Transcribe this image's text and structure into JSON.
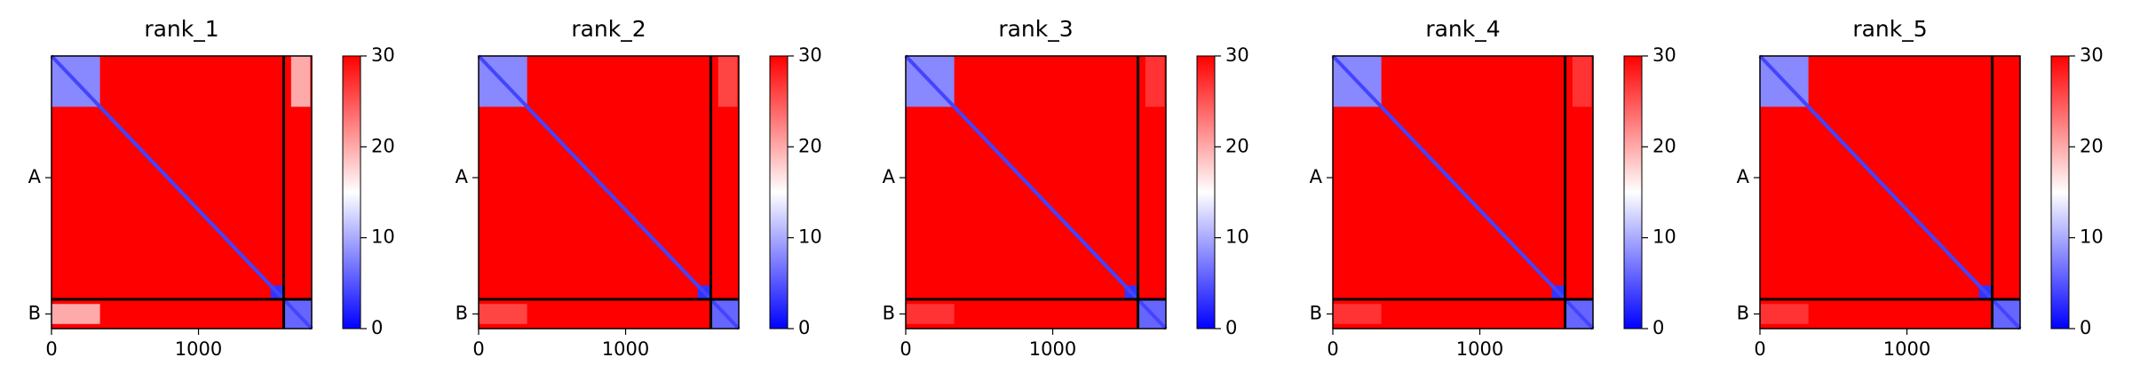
{
  "chart_data": [
    {
      "type": "heatmap",
      "title": "rank_1",
      "xlim": [
        0,
        1770
      ],
      "ylim": [
        0,
        1770
      ],
      "xticks": [
        0,
        1000
      ],
      "yticks": [
        {
          "value": 790,
          "label": "A"
        },
        {
          "value": 1675,
          "label": "B"
        }
      ],
      "clim": [
        0,
        30
      ],
      "cticks": [
        0,
        10,
        20,
        30
      ],
      "background": 30,
      "diagonal": 4,
      "chain_breaks": [
        1580
      ],
      "blocks": [
        {
          "x": [
            0,
            330
          ],
          "y": [
            0,
            330
          ],
          "value": 8
        },
        {
          "x": [
            1490,
            1580
          ],
          "y": [
            1490,
            1580
          ],
          "value": 3
        },
        {
          "x": [
            1580,
            1770
          ],
          "y": [
            1580,
            1770
          ],
          "value": 6
        },
        {
          "x": [
            1630,
            1760
          ],
          "y": [
            0,
            330
          ],
          "value": 20
        },
        {
          "x": [
            0,
            330
          ],
          "y": [
            1610,
            1740
          ],
          "value": 20
        }
      ]
    },
    {
      "type": "heatmap",
      "title": "rank_2",
      "xlim": [
        0,
        1770
      ],
      "ylim": [
        0,
        1770
      ],
      "xticks": [
        0,
        1000
      ],
      "yticks": [
        {
          "value": 790,
          "label": "A"
        },
        {
          "value": 1675,
          "label": "B"
        }
      ],
      "clim": [
        0,
        30
      ],
      "cticks": [
        0,
        10,
        20,
        30
      ],
      "background": 30,
      "diagonal": 4,
      "chain_breaks": [
        1580
      ],
      "blocks": [
        {
          "x": [
            0,
            330
          ],
          "y": [
            0,
            330
          ],
          "value": 8
        },
        {
          "x": [
            1490,
            1580
          ],
          "y": [
            1490,
            1580
          ],
          "value": 3
        },
        {
          "x": [
            1580,
            1770
          ],
          "y": [
            1580,
            1770
          ],
          "value": 6
        },
        {
          "x": [
            1630,
            1760
          ],
          "y": [
            0,
            330
          ],
          "value": 26
        },
        {
          "x": [
            0,
            330
          ],
          "y": [
            1610,
            1740
          ],
          "value": 26
        }
      ]
    },
    {
      "type": "heatmap",
      "title": "rank_3",
      "xlim": [
        0,
        1770
      ],
      "ylim": [
        0,
        1770
      ],
      "xticks": [
        0,
        1000
      ],
      "yticks": [
        {
          "value": 790,
          "label": "A"
        },
        {
          "value": 1675,
          "label": "B"
        }
      ],
      "clim": [
        0,
        30
      ],
      "cticks": [
        0,
        10,
        20,
        30
      ],
      "background": 30,
      "diagonal": 4,
      "chain_breaks": [
        1580
      ],
      "blocks": [
        {
          "x": [
            0,
            330
          ],
          "y": [
            0,
            330
          ],
          "value": 8
        },
        {
          "x": [
            1490,
            1580
          ],
          "y": [
            1490,
            1580
          ],
          "value": 3
        },
        {
          "x": [
            1580,
            1770
          ],
          "y": [
            1580,
            1770
          ],
          "value": 6
        },
        {
          "x": [
            1630,
            1760
          ],
          "y": [
            0,
            330
          ],
          "value": 27
        },
        {
          "x": [
            0,
            330
          ],
          "y": [
            1610,
            1740
          ],
          "value": 27
        }
      ]
    },
    {
      "type": "heatmap",
      "title": "rank_4",
      "xlim": [
        0,
        1770
      ],
      "ylim": [
        0,
        1770
      ],
      "xticks": [
        0,
        1000
      ],
      "yticks": [
        {
          "value": 790,
          "label": "A"
        },
        {
          "value": 1675,
          "label": "B"
        }
      ],
      "clim": [
        0,
        30
      ],
      "cticks": [
        0,
        10,
        20,
        30
      ],
      "background": 30,
      "diagonal": 4,
      "chain_breaks": [
        1580
      ],
      "blocks": [
        {
          "x": [
            0,
            330
          ],
          "y": [
            0,
            330
          ],
          "value": 8
        },
        {
          "x": [
            1490,
            1580
          ],
          "y": [
            1490,
            1580
          ],
          "value": 3
        },
        {
          "x": [
            1580,
            1770
          ],
          "y": [
            1580,
            1770
          ],
          "value": 6
        },
        {
          "x": [
            1630,
            1760
          ],
          "y": [
            0,
            330
          ],
          "value": 27
        },
        {
          "x": [
            0,
            330
          ],
          "y": [
            1610,
            1740
          ],
          "value": 27
        }
      ]
    },
    {
      "type": "heatmap",
      "title": "rank_5",
      "xlim": [
        0,
        1770
      ],
      "ylim": [
        0,
        1770
      ],
      "xticks": [
        0,
        1000
      ],
      "yticks": [
        {
          "value": 790,
          "label": "A"
        },
        {
          "value": 1675,
          "label": "B"
        }
      ],
      "clim": [
        0,
        30
      ],
      "cticks": [
        0,
        10,
        20,
        30
      ],
      "background": 30,
      "diagonal": 4,
      "chain_breaks": [
        1580
      ],
      "blocks": [
        {
          "x": [
            0,
            330
          ],
          "y": [
            0,
            330
          ],
          "value": 8
        },
        {
          "x": [
            1490,
            1580
          ],
          "y": [
            1490,
            1580
          ],
          "value": 3
        },
        {
          "x": [
            1580,
            1770
          ],
          "y": [
            1580,
            1770
          ],
          "value": 6
        },
        {
          "x": [
            0,
            330
          ],
          "y": [
            1610,
            1740
          ],
          "value": 27
        }
      ]
    }
  ]
}
